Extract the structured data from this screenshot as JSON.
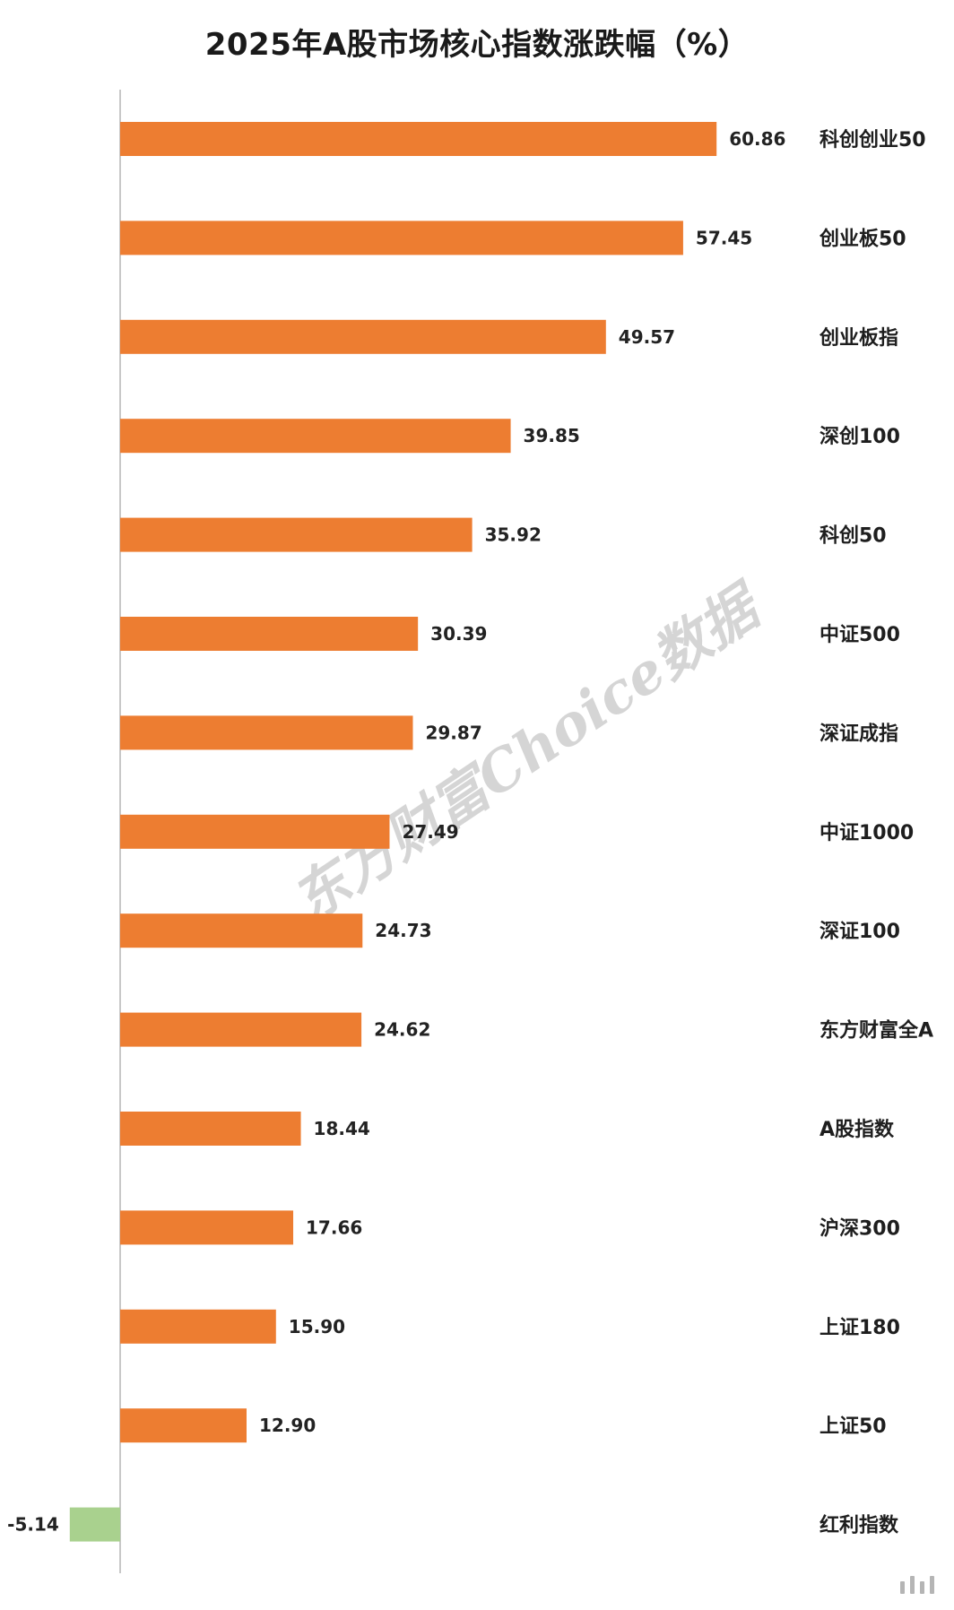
{
  "chart_data": {
    "type": "bar",
    "orientation": "horizontal",
    "title": "2025年A股市场核心指数涨跌幅（%）",
    "categories": [
      "科创创业50",
      "创业板50",
      "创业板指",
      "深创100",
      "科创50",
      "中证500",
      "深证成指",
      "中证1000",
      "深证100",
      "东方财富全A",
      "A股指数",
      "沪深300",
      "上证180",
      "上证50",
      "红利指数"
    ],
    "values": [
      60.86,
      57.45,
      49.57,
      39.85,
      35.92,
      30.39,
      29.87,
      27.49,
      24.73,
      24.62,
      18.44,
      17.66,
      15.9,
      12.9,
      -5.14
    ],
    "value_labels": [
      "60.86",
      "57.45",
      "49.57",
      "39.85",
      "35.92",
      "30.39",
      "29.87",
      "27.49",
      "24.73",
      "24.62",
      "18.44",
      "17.66",
      "15.90",
      "12.90",
      "-5.14"
    ],
    "colors": {
      "positive": "#ED7D31",
      "negative": "#A9D18E",
      "axis": "#c8c8c8"
    },
    "grid": false,
    "legend": "none"
  },
  "watermark": {
    "text": "东方财富Choice数据"
  }
}
